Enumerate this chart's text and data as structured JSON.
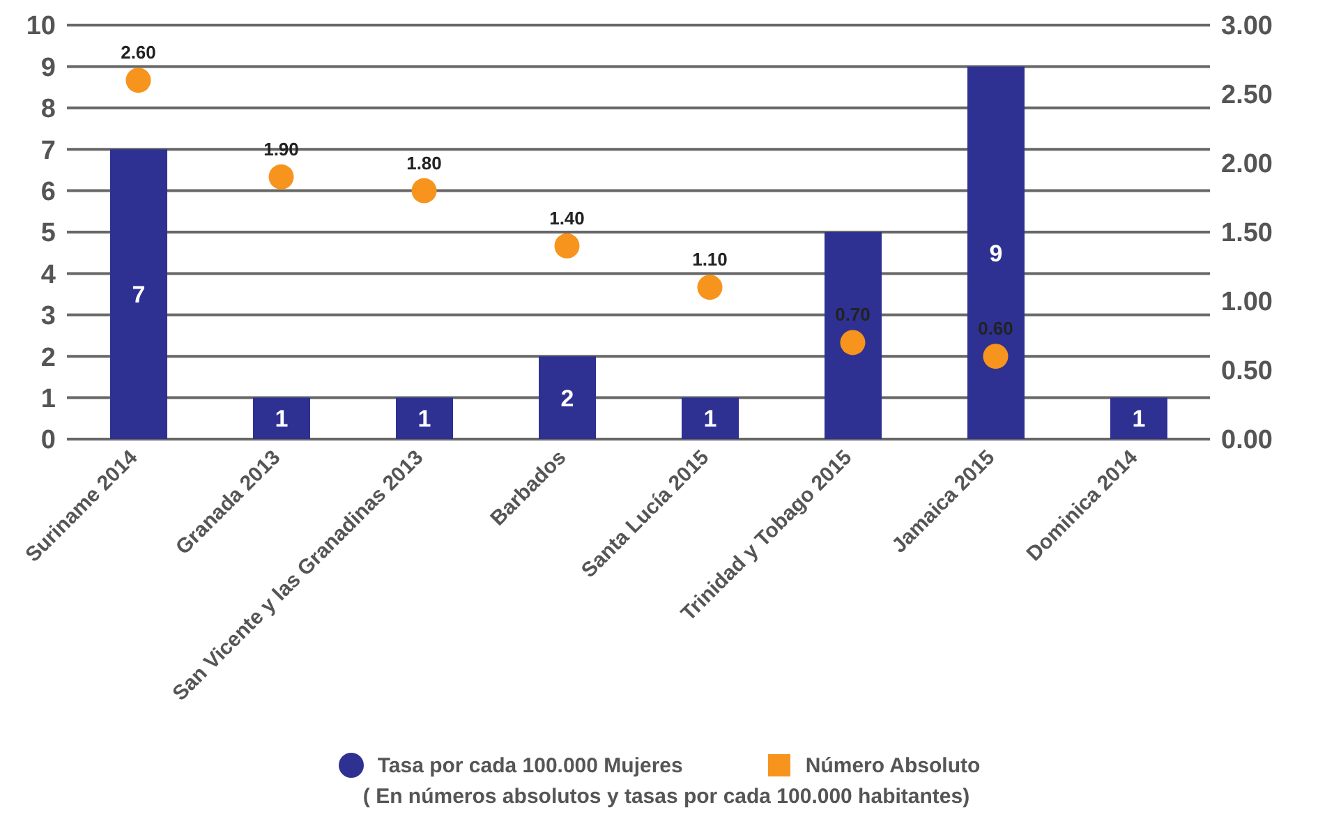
{
  "chart_data": {
    "type": "bar",
    "categories": [
      "Suriname 2014",
      "Granada 2013",
      "San Vicente y las Granadinas 2013",
      "Barbados",
      "Santa Lucía 2015",
      "Trinidad y Tobago 2015",
      "Jamaica 2015",
      "Dominica 2014"
    ],
    "series": [
      {
        "name": "Tasa por cada 100.000 Mujeres",
        "color": "#2e3192",
        "values": [
          7,
          1,
          1,
          2,
          1,
          5,
          9,
          1
        ],
        "value_labels": [
          "7",
          "1",
          "1",
          "2",
          "1",
          null,
          "9",
          "1"
        ]
      },
      {
        "name": "Número Absoluto",
        "type": "scatter",
        "axis": "y2",
        "color": "#f7941d",
        "values": [
          2.6,
          1.9,
          1.8,
          1.4,
          1.1,
          0.7,
          0.6,
          null
        ],
        "value_labels": [
          "2.60",
          "1.90",
          "1.80",
          "1.40",
          "1.10",
          "0.70",
          "0.60",
          null
        ]
      }
    ],
    "ylim": [
      0,
      10
    ],
    "yticks": [
      0,
      1,
      2,
      3,
      4,
      5,
      6,
      7,
      8,
      9,
      10
    ],
    "y2lim": [
      0,
      3
    ],
    "y2ticks": [
      {
        "value": 0,
        "label": "0.00"
      },
      {
        "value": 0.5,
        "label": "0.50"
      },
      {
        "value": 1,
        "label": "1.00"
      },
      {
        "value": 1.5,
        "label": "1.50"
      },
      {
        "value": 2,
        "label": "2.00"
      },
      {
        "value": 2.5,
        "label": "2.50"
      },
      {
        "value": 3,
        "label": "3.00"
      }
    ],
    "grid": "y",
    "legend": "bottom",
    "marker": "circle",
    "annotations": [
      "( En números absolutos y tasas por cada 100.000 habitantes)"
    ]
  }
}
